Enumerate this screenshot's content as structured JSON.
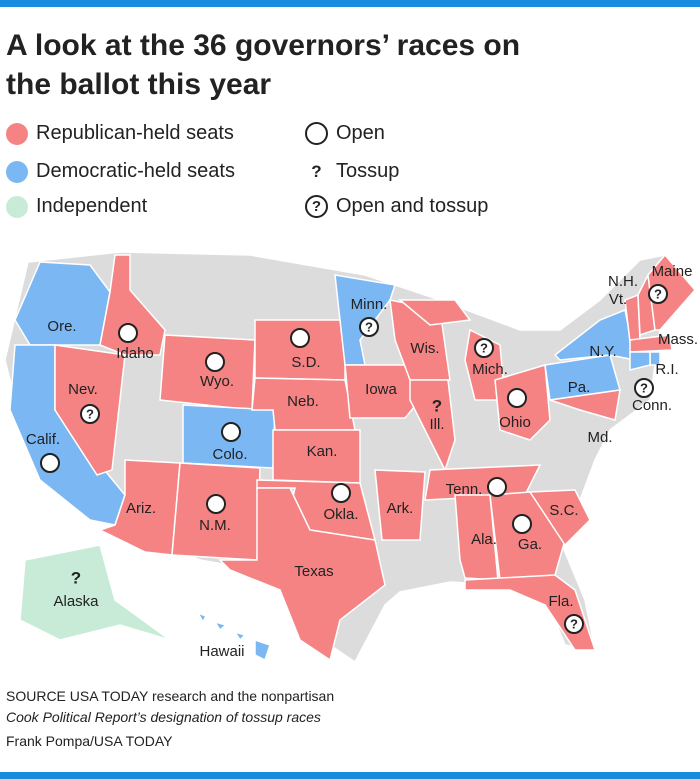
{
  "header": {
    "title": "A look at the 36 governors’ races on the ballot this year"
  },
  "legend": {
    "republican": "Republican-held seats",
    "democratic": "Democratic-held seats",
    "independent": "Independent",
    "open": "Open",
    "tossup_symbol": "?",
    "tossup": "Tossup",
    "open_and_tossup": "Open and tossup"
  },
  "colors": {
    "R": "#f58383",
    "D": "#7ab7f3",
    "I": "#c7ebd6",
    "other": "#dcdcdc"
  },
  "states": [
    {
      "label": "Ore.",
      "party": "D",
      "open": false,
      "tossup": false
    },
    {
      "label": "Calif.",
      "party": "D",
      "open": true,
      "tossup": false
    },
    {
      "label": "Nev.",
      "party": "R",
      "open": true,
      "tossup": true
    },
    {
      "label": "Idaho",
      "party": "R",
      "open": true,
      "tossup": false
    },
    {
      "label": "Wyo.",
      "party": "R",
      "open": true,
      "tossup": false
    },
    {
      "label": "Colo.",
      "party": "D",
      "open": true,
      "tossup": false
    },
    {
      "label": "Ariz.",
      "party": "R",
      "open": false,
      "tossup": false
    },
    {
      "label": "N.M.",
      "party": "R",
      "open": true,
      "tossup": false
    },
    {
      "label": "S.D.",
      "party": "R",
      "open": true,
      "tossup": false
    },
    {
      "label": "Neb.",
      "party": "R",
      "open": false,
      "tossup": false
    },
    {
      "label": "Kan.",
      "party": "R",
      "open": false,
      "tossup": false
    },
    {
      "label": "Okla.",
      "party": "R",
      "open": true,
      "tossup": false
    },
    {
      "label": "Texas",
      "party": "R",
      "open": false,
      "tossup": false
    },
    {
      "label": "Minn.",
      "party": "D",
      "open": true,
      "tossup": true
    },
    {
      "label": "Iowa",
      "party": "R",
      "open": false,
      "tossup": false
    },
    {
      "label": "Wis.",
      "party": "R",
      "open": false,
      "tossup": false
    },
    {
      "label": "Ill.",
      "party": "R",
      "open": false,
      "tossup": true
    },
    {
      "label": "Mich.",
      "party": "R",
      "open": true,
      "tossup": true
    },
    {
      "label": "Ohio",
      "party": "R",
      "open": true,
      "tossup": false
    },
    {
      "label": "Ark.",
      "party": "R",
      "open": false,
      "tossup": false
    },
    {
      "label": "Tenn.",
      "party": "R",
      "open": true,
      "tossup": false
    },
    {
      "label": "Ala.",
      "party": "R",
      "open": false,
      "tossup": false
    },
    {
      "label": "Ga.",
      "party": "R",
      "open": true,
      "tossup": false
    },
    {
      "label": "S.C.",
      "party": "R",
      "open": false,
      "tossup": false
    },
    {
      "label": "Fla.",
      "party": "R",
      "open": true,
      "tossup": true
    },
    {
      "label": "Pa.",
      "party": "D",
      "open": false,
      "tossup": false
    },
    {
      "label": "N.Y.",
      "party": "D",
      "open": false,
      "tossup": false
    },
    {
      "label": "Md.",
      "party": "R",
      "open": false,
      "tossup": false
    },
    {
      "label": "Vt.",
      "party": "R",
      "open": false,
      "tossup": false
    },
    {
      "label": "N.H.",
      "party": "R",
      "open": false,
      "tossup": false
    },
    {
      "label": "Maine",
      "party": "R",
      "open": true,
      "tossup": true
    },
    {
      "label": "Mass.",
      "party": "R",
      "open": false,
      "tossup": false
    },
    {
      "label": "R.I.",
      "party": "D",
      "open": false,
      "tossup": false
    },
    {
      "label": "Conn.",
      "party": "D",
      "open": true,
      "tossup": true
    },
    {
      "label": "Alaska",
      "party": "I",
      "open": false,
      "tossup": true
    },
    {
      "label": "Hawaii",
      "party": "D",
      "open": false,
      "tossup": false
    }
  ],
  "source": {
    "line1": "SOURCE USA TODAY research and the nonpartisan",
    "line2": "Cook Political Report’s designation of tossup races",
    "credit": "Frank Pompa/USA TODAY"
  }
}
